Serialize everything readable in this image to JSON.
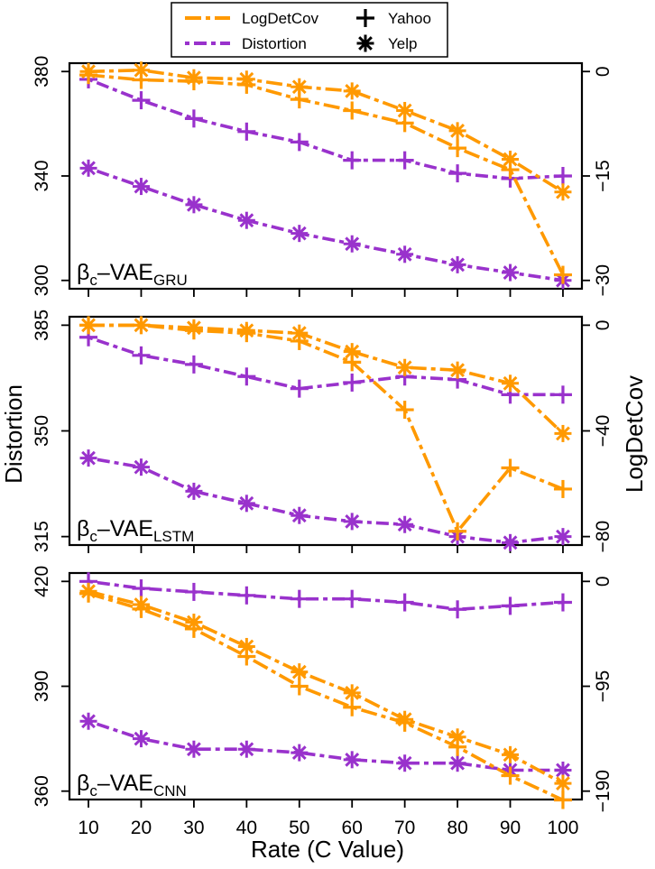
{
  "legend": {
    "items": [
      {
        "label": "LogDetCov",
        "color": "#FF9900",
        "dash": "longdash"
      },
      {
        "label": "Distortion",
        "color": "#9932CC",
        "dash": "dotdash"
      },
      {
        "label": "Yahoo",
        "marker": "plus"
      },
      {
        "label": "Yelp",
        "marker": "asterisk"
      }
    ]
  },
  "xlabel": "Rate (C Value)",
  "ylabel_left": "Distortion",
  "ylabel_right": "LogDetCov",
  "colors": {
    "logdet": "#FF9900",
    "distortion": "#9932CC"
  },
  "chart_data": [
    {
      "type": "line",
      "model": "GRU",
      "label_base": "β",
      "label_sub1": "c",
      "label_mid": "–VAE",
      "label_sub2": "GRU",
      "x": [
        10,
        20,
        30,
        40,
        50,
        60,
        70,
        80,
        90,
        100
      ],
      "xticks": [
        "10",
        "20",
        "30",
        "40",
        "50",
        "60",
        "70",
        "80",
        "90",
        "100"
      ],
      "left_axis": {
        "ylim": [
          300,
          380
        ],
        "ticks": [
          300,
          340,
          380
        ]
      },
      "right_axis": {
        "ylim": [
          -30,
          0
        ],
        "ticks": [
          0,
          -15,
          -30
        ],
        "tick_labels": [
          "0",
          "−15",
          "−30"
        ]
      },
      "series": [
        {
          "name": "Distortion Yahoo",
          "metric": "Distortion",
          "dataset": "Yahoo",
          "axis": "left",
          "values": [
            377,
            369,
            362,
            357,
            353,
            346,
            346,
            341,
            339,
            340
          ]
        },
        {
          "name": "Distortion Yelp",
          "metric": "Distortion",
          "dataset": "Yelp",
          "axis": "left",
          "values": [
            343,
            336,
            329,
            323,
            318,
            314,
            310,
            306,
            303,
            300
          ]
        },
        {
          "name": "LogDetCov Yahoo",
          "metric": "LogDetCov",
          "dataset": "Yahoo",
          "axis": "right",
          "values": [
            -0.5,
            -1.2,
            -1.4,
            -1.9,
            -4.0,
            -5.6,
            -7.4,
            -11.0,
            -14.1,
            -29.2
          ]
        },
        {
          "name": "LogDetCov Yelp",
          "metric": "LogDetCov",
          "dataset": "Yelp",
          "axis": "right",
          "values": [
            0.0,
            0.2,
            -0.9,
            -1.1,
            -2.2,
            -2.8,
            -5.6,
            -8.5,
            -12.6,
            -17.3
          ]
        }
      ]
    },
    {
      "type": "line",
      "model": "LSTM",
      "label_base": "β",
      "label_sub1": "c",
      "label_mid": "–VAE",
      "label_sub2": "LSTM",
      "x": [
        10,
        20,
        30,
        40,
        50,
        60,
        70,
        80,
        90,
        100
      ],
      "xticks": [
        "10",
        "20",
        "30",
        "40",
        "50",
        "60",
        "70",
        "80",
        "90",
        "100"
      ],
      "left_axis": {
        "ylim": [
          315,
          385
        ],
        "ticks": [
          315,
          350,
          385
        ]
      },
      "right_axis": {
        "ylim": [
          -80,
          0
        ],
        "ticks": [
          0,
          -40,
          -80
        ],
        "tick_labels": [
          "0",
          "−40",
          "−80"
        ]
      },
      "series": [
        {
          "name": "Distortion Yahoo",
          "metric": "Distortion",
          "dataset": "Yahoo",
          "axis": "left",
          "values": [
            381,
            375,
            372,
            368,
            364,
            366,
            368,
            367,
            362,
            362
          ]
        },
        {
          "name": "Distortion Yelp",
          "metric": "Distortion",
          "dataset": "Yelp",
          "axis": "left",
          "values": [
            341,
            338,
            330,
            326,
            322,
            320,
            319,
            315,
            313,
            315
          ]
        },
        {
          "name": "LogDetCov Yahoo",
          "metric": "LogDetCov",
          "dataset": "Yahoo",
          "axis": "right",
          "values": [
            0.0,
            0.0,
            -2.0,
            -3.0,
            -6.0,
            -14.0,
            -32.0,
            -78.0,
            -54.0,
            -62.0
          ]
        },
        {
          "name": "LogDetCov Yelp",
          "metric": "LogDetCov",
          "dataset": "Yelp",
          "axis": "right",
          "values": [
            0.0,
            0.0,
            -1.0,
            -2.0,
            -3.0,
            -10.0,
            -16.0,
            -17.0,
            -22.0,
            -41.0
          ]
        }
      ]
    },
    {
      "type": "line",
      "model": "CNN",
      "label_base": "β",
      "label_sub1": "c",
      "label_mid": "–VAE",
      "label_sub2": "CNN",
      "x": [
        10,
        20,
        30,
        40,
        50,
        60,
        70,
        80,
        90,
        100
      ],
      "xticks": [
        "10",
        "20",
        "30",
        "40",
        "50",
        "60",
        "70",
        "80",
        "90",
        "100"
      ],
      "left_axis": {
        "ylim": [
          360,
          420
        ],
        "ticks": [
          360,
          390,
          420
        ]
      },
      "right_axis": {
        "ylim": [
          -190,
          0
        ],
        "ticks": [
          0,
          -95,
          -190
        ],
        "tick_labels": [
          "0",
          "−95",
          "−190"
        ]
      },
      "series": [
        {
          "name": "Distortion Yahoo",
          "metric": "Distortion",
          "dataset": "Yahoo",
          "axis": "left",
          "values": [
            420,
            418,
            417,
            416,
            415,
            415,
            414,
            412,
            413,
            414
          ]
        },
        {
          "name": "Distortion Yelp",
          "metric": "Distortion",
          "dataset": "Yelp",
          "axis": "left",
          "values": [
            380,
            375,
            372,
            372,
            371,
            369,
            368,
            368,
            366,
            366
          ]
        },
        {
          "name": "LogDetCov Yahoo",
          "metric": "LogDetCov",
          "dataset": "Yahoo",
          "axis": "right",
          "values": [
            -11.0,
            -25.0,
            -43.0,
            -68.0,
            -95.0,
            -114.0,
            -128.0,
            -150.0,
            -176.0,
            -198.0
          ]
        },
        {
          "name": "LogDetCov Yelp",
          "metric": "LogDetCov",
          "dataset": "Yelp",
          "axis": "right",
          "values": [
            -9.0,
            -21.0,
            -37.0,
            -59.0,
            -82.0,
            -101.0,
            -125.0,
            -141.0,
            -157.0,
            -183.0
          ]
        }
      ]
    }
  ]
}
